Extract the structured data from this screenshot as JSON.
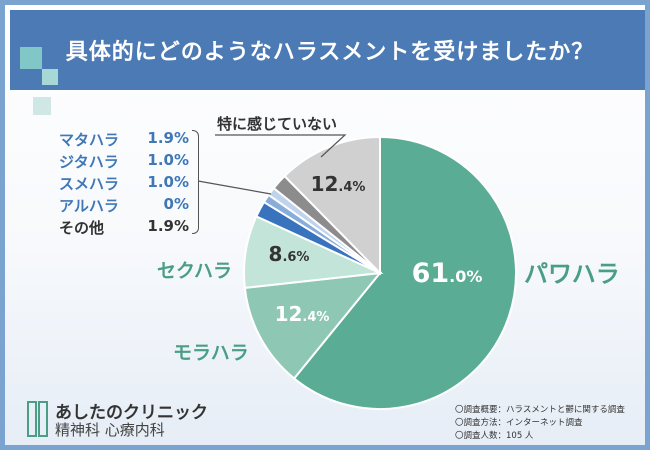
{
  "title": "具体的にどのようなハラスメントを受けましたか？",
  "chart_data": {
    "type": "pie",
    "title": "具体的にどのようなハラスメントを受けましたか？",
    "start": "12 o'clock, clockwise",
    "slices": [
      {
        "name": "パワハラ",
        "value": 61.0,
        "label_int": "61",
        "label_dec": ".0%",
        "color": "#5aac94"
      },
      {
        "name": "モラハラ",
        "value": 12.4,
        "label_int": "12",
        "label_dec": ".4%",
        "color": "#8ec8b5"
      },
      {
        "name": "セクハラ",
        "value": 8.6,
        "label_int": "8",
        "label_dec": ".6%",
        "color": "#c3e4d9"
      },
      {
        "name": "マタハラ",
        "value": 1.9,
        "color": "#3a73bd"
      },
      {
        "name": "ジタハラ",
        "value": 1.0,
        "color": "#87aedb"
      },
      {
        "name": "スメハラ",
        "value": 1.0,
        "color": "#bfd3ec"
      },
      {
        "name": "アルハラ",
        "value": 0,
        "color": "#d6e3f2"
      },
      {
        "name": "その他",
        "value": 1.9,
        "color": "#8c8c8c"
      },
      {
        "name": "特に感じていない",
        "value": 12.4,
        "label_int": "12",
        "label_dec": ".4%",
        "color": "#d0d0d0"
      }
    ]
  },
  "breakdown": [
    {
      "label": "マタハラ",
      "value": "1.9%",
      "tone": "blue"
    },
    {
      "label": "ジタハラ",
      "value": "1.0%",
      "tone": "blue"
    },
    {
      "label": "スメハラ",
      "value": "1.0%",
      "tone": "blue"
    },
    {
      "label": "アルハラ",
      "value": "0%",
      "tone": "blue"
    },
    {
      "label": "その他",
      "value": "1.9%",
      "tone": "dark"
    }
  ],
  "labels": {
    "power": "パワハラ",
    "mora": "モラハラ",
    "seku": "セクハラ",
    "none": "特に感じていない"
  },
  "logo": {
    "name": "あしたのクリニック",
    "dept": "精神科 心療内科"
  },
  "notes": [
    "〇調査概要：ハラスメントと鬱に関する調査",
    "〇調査方法：インターネット調査",
    "〇調査人数：105 人"
  ],
  "colors": {
    "header": "#4b7ab4",
    "green": "#4a9e86",
    "blue_text": "#3f77b7"
  }
}
